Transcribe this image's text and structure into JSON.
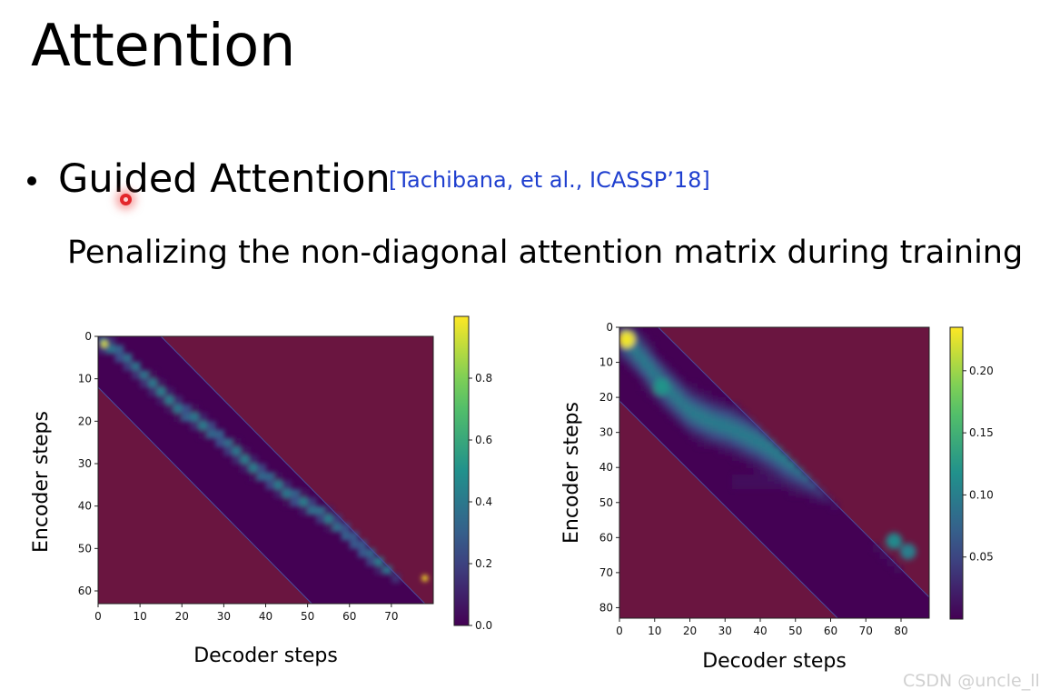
{
  "slide": {
    "title": "Attention",
    "bullet": "Guided Attention",
    "citation": "[Tachibana, et al., ICASSP’18]",
    "subtitle": "Penalizing the non-diagonal attention matrix during training",
    "watermark": "CSDN @uncle_ll"
  },
  "colors": {
    "masked_region": "#6a1540",
    "cite_blue": "#1f3fcf",
    "diagonal_band_border": "#4a4fa0",
    "viridis": [
      "#440154",
      "#3b528b",
      "#21918c",
      "#5ec962",
      "#fde725"
    ]
  },
  "chart_data": [
    {
      "type": "heatmap",
      "title": "",
      "xlabel": "Decoder steps",
      "ylabel": "Encoder steps",
      "x_range": [
        0,
        80
      ],
      "y_range": [
        0,
        63
      ],
      "y_inverted": true,
      "x_ticks": [
        0,
        10,
        20,
        30,
        40,
        50,
        60,
        70
      ],
      "y_ticks": [
        0,
        10,
        20,
        30,
        40,
        50,
        60
      ],
      "colorbar": {
        "min": 0.0,
        "max": 1.0,
        "ticks": [
          "0.0",
          "0.2",
          "0.4",
          "0.6",
          "0.8"
        ],
        "tick_values": [
          0.0,
          0.2,
          0.4,
          0.6,
          0.8
        ]
      },
      "alignment_path": [
        [
          0,
          0
        ],
        [
          1,
          1.5
        ],
        [
          4,
          3
        ],
        [
          8,
          6.5
        ],
        [
          12,
          10.5
        ],
        [
          16,
          14
        ],
        [
          20,
          17.5
        ],
        [
          24,
          20
        ],
        [
          28,
          23
        ],
        [
          32,
          26.5
        ],
        [
          36,
          30
        ],
        [
          40,
          33
        ],
        [
          44,
          36
        ],
        [
          48,
          38.5
        ],
        [
          52,
          41
        ],
        [
          56,
          43.5
        ],
        [
          60,
          47
        ],
        [
          64,
          51
        ],
        [
          68,
          54
        ],
        [
          72,
          56
        ],
        [
          76,
          57
        ],
        [
          80,
          57
        ]
      ],
      "peak_points": [
        [
          1.5,
          1.8,
          0.95
        ],
        [
          78,
          57,
          1.0
        ]
      ],
      "mask_band": {
        "upper_offset": 15,
        "lower_offset": -12
      }
    },
    {
      "type": "heatmap",
      "title": "",
      "xlabel": "Decoder steps",
      "ylabel": "Encoder steps",
      "x_range": [
        0,
        88
      ],
      "y_range": [
        0,
        83
      ],
      "y_inverted": true,
      "x_ticks": [
        0,
        10,
        20,
        30,
        40,
        50,
        60,
        70,
        80
      ],
      "y_ticks": [
        0,
        10,
        20,
        30,
        40,
        50,
        60,
        70,
        80
      ],
      "colorbar": {
        "min": 0.0,
        "max": 0.235,
        "ticks": [
          "0.05",
          "0.10",
          "0.15",
          "0.20"
        ],
        "tick_values": [
          0.05,
          0.1,
          0.15,
          0.2
        ]
      },
      "alignment_path": [
        [
          0,
          2
        ],
        [
          4,
          6
        ],
        [
          8,
          11
        ],
        [
          12,
          16
        ],
        [
          16,
          20
        ],
        [
          20,
          24
        ],
        [
          26,
          27
        ],
        [
          32,
          29
        ],
        [
          40,
          33
        ],
        [
          48,
          38
        ],
        [
          56,
          42
        ],
        [
          64,
          45
        ],
        [
          70,
          52
        ],
        [
          74,
          57
        ],
        [
          78,
          61
        ],
        [
          84,
          65
        ],
        [
          88,
          67
        ]
      ],
      "hotspots": [
        [
          2,
          3.5,
          0.23
        ],
        [
          78,
          61,
          0.11
        ],
        [
          82,
          64,
          0.1
        ],
        [
          12,
          17,
          0.12
        ]
      ],
      "mask_band": {
        "upper_offset": 11,
        "lower_offset": -21
      }
    }
  ]
}
